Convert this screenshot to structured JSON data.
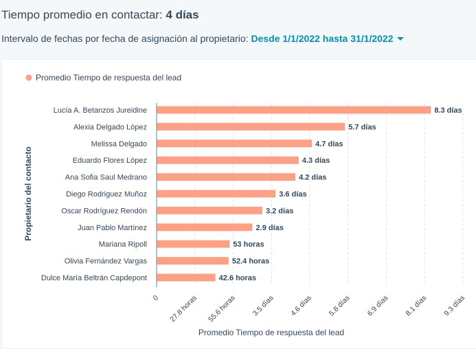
{
  "summary": {
    "label": "Tiempo promedio en contactar: ",
    "value": "4 días"
  },
  "date_range": {
    "label": "Intervalo de fechas por fecha de asignación al propietario: ",
    "value": "Desde 1/1/2022 hasta 31/1/2022",
    "icon": "caret-down-icon"
  },
  "colors": {
    "bar": "#ff9f84",
    "axis": "#7c98b6",
    "grid": "#dfe3eb",
    "link": "#0091ae",
    "text": "#33475b"
  },
  "chart_data": {
    "type": "bar",
    "orientation": "horizontal",
    "title": "",
    "legend": {
      "position": "top-left",
      "entries": [
        "Promedio Tiempo de respuesta del lead"
      ]
    },
    "xlabel": "Promedio Tiempo de respuesta del lead",
    "ylabel": "Propietario del contacto",
    "grid": true,
    "unit_in_data": "días",
    "xlim": [
      0,
      9.3
    ],
    "xticks": [
      {
        "value": 0,
        "label": "0"
      },
      {
        "value": 1.16,
        "label": "27.8 horas"
      },
      {
        "value": 2.32,
        "label": "55.6 horas"
      },
      {
        "value": 3.48,
        "label": "3.5 días"
      },
      {
        "value": 4.63,
        "label": "4.6 días"
      },
      {
        "value": 5.79,
        "label": "5.8 días"
      },
      {
        "value": 6.95,
        "label": "6.9 días"
      },
      {
        "value": 8.11,
        "label": "8.1 días"
      },
      {
        "value": 9.27,
        "label": "9.3 días"
      }
    ],
    "categories": [
      "Lucía A. Betanzos Jureidine",
      "Alexia Delgado López",
      "Melissa Delgado",
      "Eduardo Flores López",
      "Ana Sofia Saul Medrano",
      "Diego Rodriguez Muñoz",
      "Oscar Rodríguez Rendón",
      "Juan Pablo Martínez",
      "Mariana Ripoll",
      "Olivia Fernández Vargas",
      "Dulce María Beltrán Capdepont"
    ],
    "series": [
      {
        "name": "Promedio Tiempo de respuesta del lead",
        "values": [
          8.3,
          5.7,
          4.7,
          4.3,
          4.2,
          3.6,
          3.2,
          2.9,
          2.21,
          2.18,
          1.78
        ],
        "value_labels": [
          "8.3 días",
          "5.7 días",
          "4.7 días",
          "4.3 días",
          "4.2 días",
          "3.6 días",
          "3.2 días",
          "2.9 días",
          "53 horas",
          "52.4 horas",
          "42.6 horas"
        ]
      }
    ]
  }
}
